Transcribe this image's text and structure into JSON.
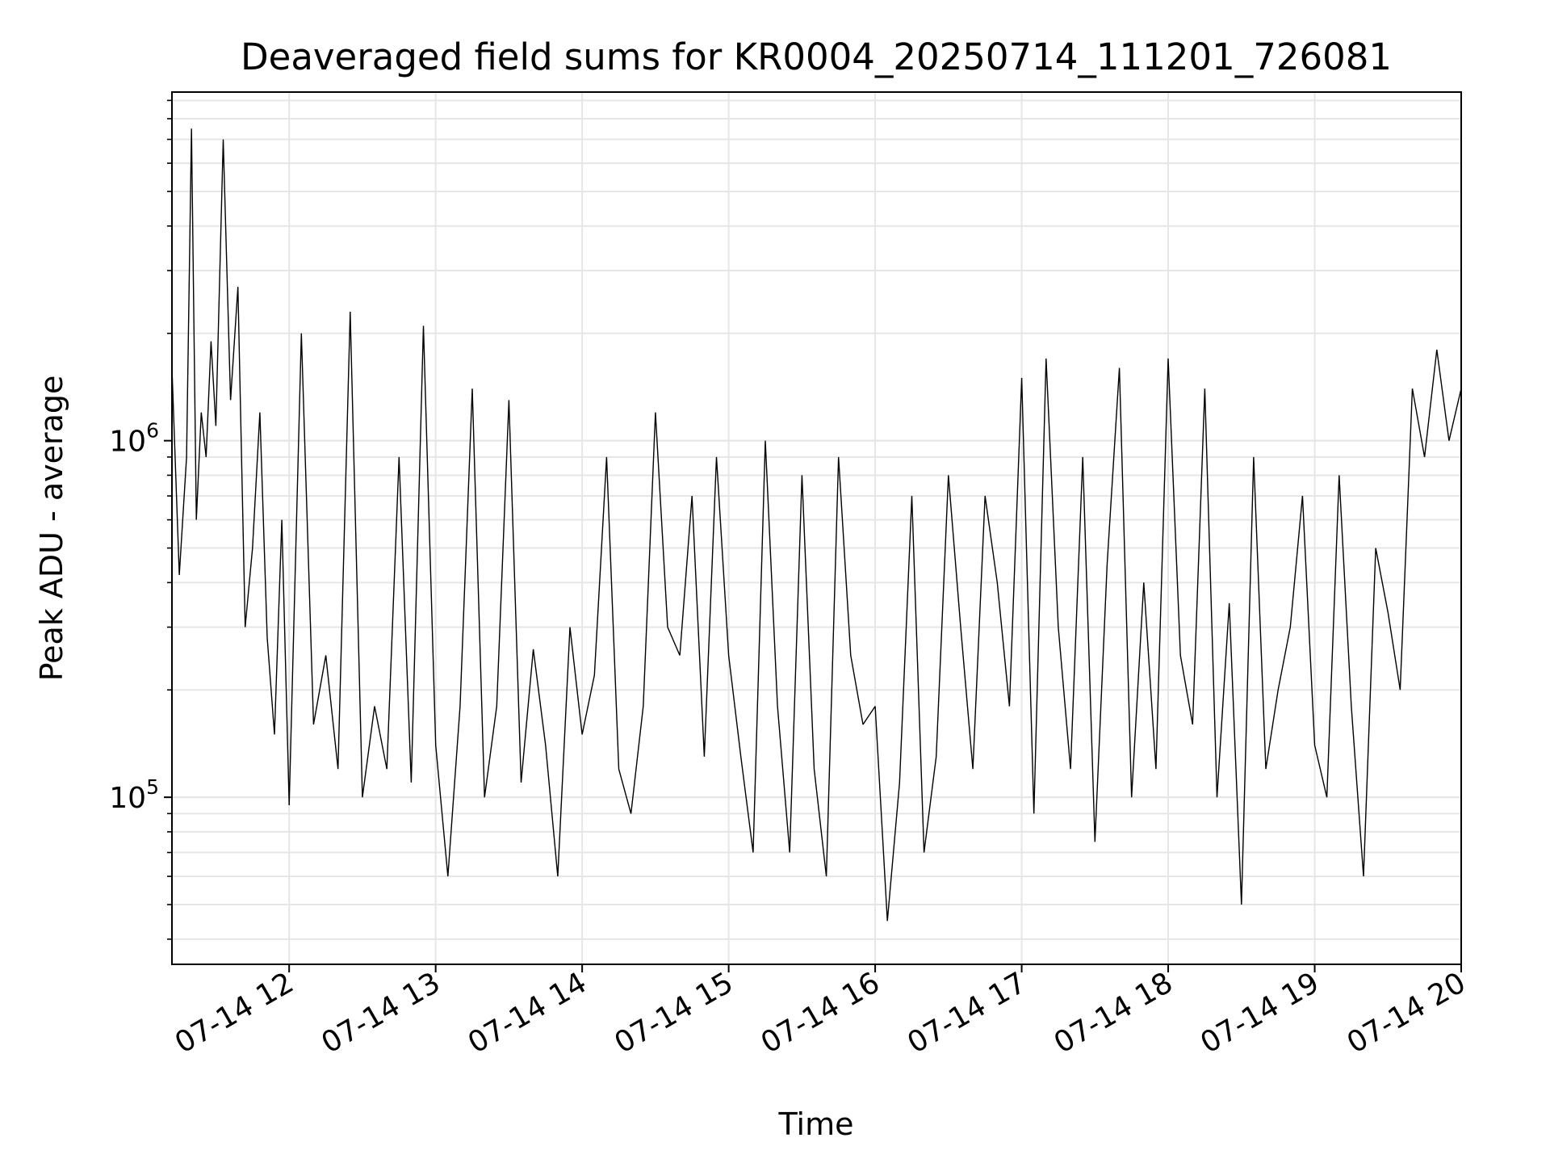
{
  "chart_data": {
    "type": "line",
    "title": "Deaveraged field sums for KR0004_20250714_111201_726081",
    "xlabel": "Time",
    "ylabel": "Peak ADU - average",
    "yscale": "log",
    "ylim": [
      34000,
      9500000
    ],
    "xlim": [
      "2025-07-14 11:12",
      "2025-07-14 20:00"
    ],
    "x_ticks": [
      {
        "value": "2025-07-14 12:00",
        "label": "07-14 12"
      },
      {
        "value": "2025-07-14 13:00",
        "label": "07-14 13"
      },
      {
        "value": "2025-07-14 14:00",
        "label": "07-14 14"
      },
      {
        "value": "2025-07-14 15:00",
        "label": "07-14 15"
      },
      {
        "value": "2025-07-14 16:00",
        "label": "07-14 16"
      },
      {
        "value": "2025-07-14 17:00",
        "label": "07-14 17"
      },
      {
        "value": "2025-07-14 18:00",
        "label": "07-14 18"
      },
      {
        "value": "2025-07-14 19:00",
        "label": "07-14 19"
      },
      {
        "value": "2025-07-14 20:00",
        "label": "07-14 20"
      }
    ],
    "y_ticks": [
      {
        "value": 100000,
        "base": "10",
        "exponent": "5"
      },
      {
        "value": 1000000,
        "base": "10",
        "exponent": "6"
      }
    ],
    "grid": true,
    "line_color": "#000000",
    "grid_color": "#e6e6e6",
    "series": [
      {
        "x": [
          "2025-07-14 11:12",
          "2025-07-14 11:15",
          "2025-07-14 11:18",
          "2025-07-14 11:20",
          "2025-07-14 11:22",
          "2025-07-14 11:24",
          "2025-07-14 11:26",
          "2025-07-14 11:28",
          "2025-07-14 11:30",
          "2025-07-14 11:33",
          "2025-07-14 11:36",
          "2025-07-14 11:39",
          "2025-07-14 11:42",
          "2025-07-14 11:45",
          "2025-07-14 11:48",
          "2025-07-14 11:51",
          "2025-07-14 11:54",
          "2025-07-14 11:57",
          "2025-07-14 12:00",
          "2025-07-14 12:05",
          "2025-07-14 12:10",
          "2025-07-14 12:15",
          "2025-07-14 12:20",
          "2025-07-14 12:25",
          "2025-07-14 12:30",
          "2025-07-14 12:35",
          "2025-07-14 12:40",
          "2025-07-14 12:45",
          "2025-07-14 12:50",
          "2025-07-14 12:55",
          "2025-07-14 13:00",
          "2025-07-14 13:05",
          "2025-07-14 13:10",
          "2025-07-14 13:15",
          "2025-07-14 13:20",
          "2025-07-14 13:25",
          "2025-07-14 13:30",
          "2025-07-14 13:35",
          "2025-07-14 13:40",
          "2025-07-14 13:45",
          "2025-07-14 13:50",
          "2025-07-14 13:55",
          "2025-07-14 14:00",
          "2025-07-14 14:05",
          "2025-07-14 14:10",
          "2025-07-14 14:15",
          "2025-07-14 14:20",
          "2025-07-14 14:25",
          "2025-07-14 14:30",
          "2025-07-14 14:35",
          "2025-07-14 14:40",
          "2025-07-14 14:45",
          "2025-07-14 14:50",
          "2025-07-14 14:55",
          "2025-07-14 15:00",
          "2025-07-14 15:05",
          "2025-07-14 15:10",
          "2025-07-14 15:15",
          "2025-07-14 15:20",
          "2025-07-14 15:25",
          "2025-07-14 15:30",
          "2025-07-14 15:35",
          "2025-07-14 15:40",
          "2025-07-14 15:45",
          "2025-07-14 15:50",
          "2025-07-14 15:55",
          "2025-07-14 16:00",
          "2025-07-14 16:05",
          "2025-07-14 16:10",
          "2025-07-14 16:15",
          "2025-07-14 16:20",
          "2025-07-14 16:25",
          "2025-07-14 16:30",
          "2025-07-14 16:35",
          "2025-07-14 16:40",
          "2025-07-14 16:45",
          "2025-07-14 16:50",
          "2025-07-14 16:55",
          "2025-07-14 17:00",
          "2025-07-14 17:05",
          "2025-07-14 17:10",
          "2025-07-14 17:15",
          "2025-07-14 17:20",
          "2025-07-14 17:25",
          "2025-07-14 17:30",
          "2025-07-14 17:35",
          "2025-07-14 17:40",
          "2025-07-14 17:45",
          "2025-07-14 17:50",
          "2025-07-14 17:55",
          "2025-07-14 18:00",
          "2025-07-14 18:05",
          "2025-07-14 18:10",
          "2025-07-14 18:15",
          "2025-07-14 18:20",
          "2025-07-14 18:25",
          "2025-07-14 18:30",
          "2025-07-14 18:35",
          "2025-07-14 18:40",
          "2025-07-14 18:45",
          "2025-07-14 18:50",
          "2025-07-14 18:55",
          "2025-07-14 19:00",
          "2025-07-14 19:05",
          "2025-07-14 19:10",
          "2025-07-14 19:15",
          "2025-07-14 19:20",
          "2025-07-14 19:25",
          "2025-07-14 19:30",
          "2025-07-14 19:35",
          "2025-07-14 19:40",
          "2025-07-14 19:45",
          "2025-07-14 19:50",
          "2025-07-14 19:55",
          "2025-07-14 20:00"
        ],
        "y": [
          1600000,
          420000,
          900000,
          7500000,
          600000,
          1200000,
          900000,
          1900000,
          1100000,
          7000000,
          1300000,
          2700000,
          300000,
          500000,
          1200000,
          280000,
          150000,
          600000,
          95000,
          2000000,
          160000,
          250000,
          120000,
          2300000,
          100000,
          180000,
          120000,
          900000,
          110000,
          2100000,
          140000,
          60000,
          180000,
          1400000,
          100000,
          180000,
          1300000,
          110000,
          260000,
          140000,
          60000,
          300000,
          150000,
          220000,
          900000,
          120000,
          90000,
          180000,
          1200000,
          300000,
          250000,
          700000,
          130000,
          900000,
          250000,
          130000,
          70000,
          1000000,
          180000,
          70000,
          800000,
          120000,
          60000,
          900000,
          250000,
          160000,
          180000,
          45000,
          110000,
          700000,
          70000,
          130000,
          800000,
          300000,
          120000,
          700000,
          400000,
          180000,
          1500000,
          90000,
          1700000,
          300000,
          120000,
          900000,
          75000,
          450000,
          1600000,
          100000,
          400000,
          120000,
          1700000,
          250000,
          160000,
          1400000,
          100000,
          350000,
          50000,
          900000,
          120000,
          200000,
          300000,
          700000,
          140000,
          100000,
          800000,
          180000,
          60000,
          500000,
          330000,
          200000,
          1400000,
          900000,
          1800000,
          1000000,
          1400000
        ]
      }
    ]
  }
}
